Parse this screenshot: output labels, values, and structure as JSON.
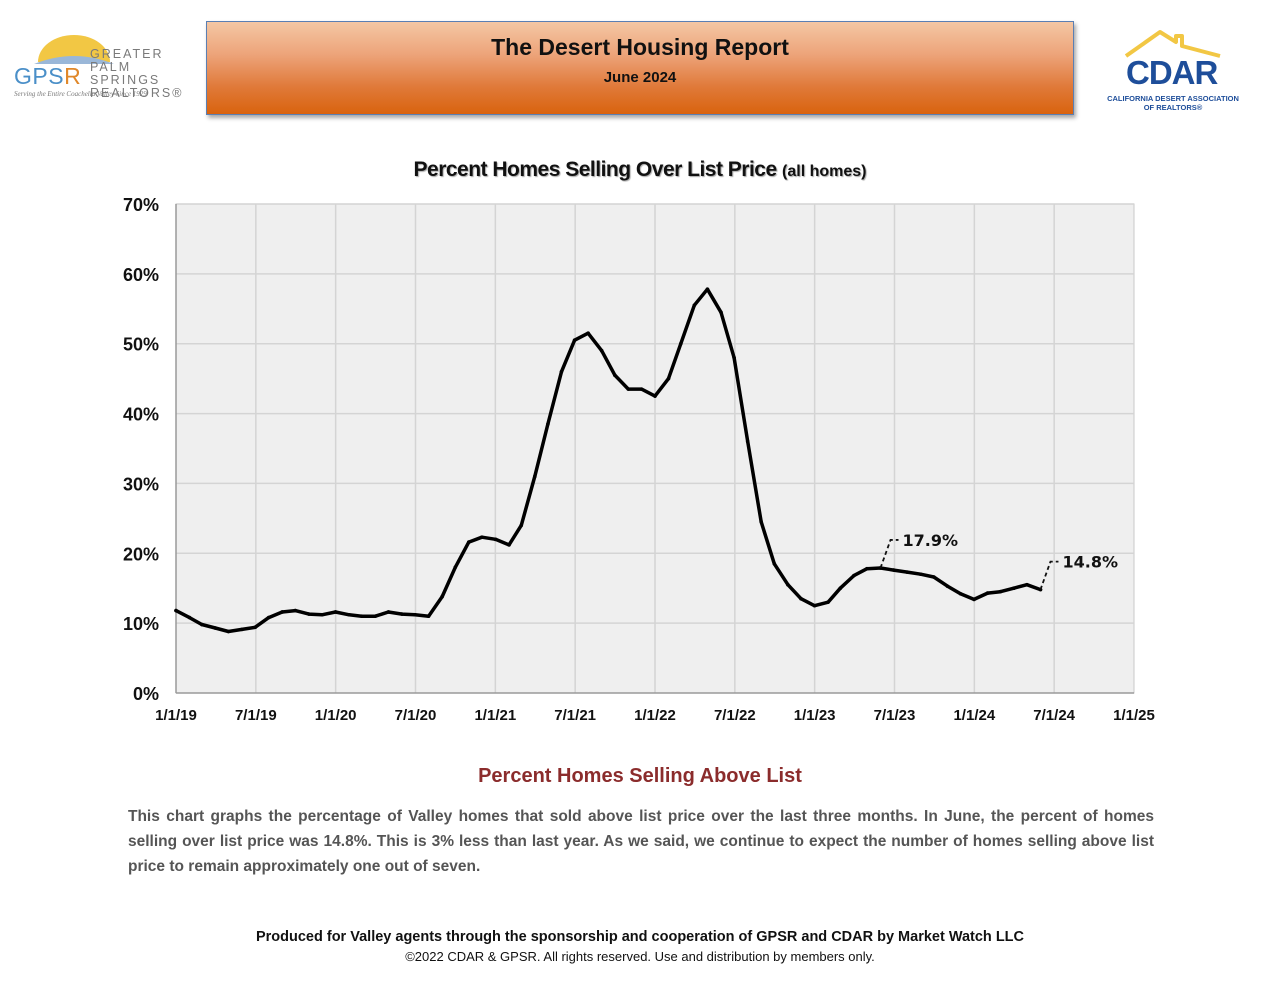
{
  "header": {
    "title": "The Desert Housing Report",
    "subtitle": "June 2024"
  },
  "logos": {
    "left": {
      "abbrev_main": "GPS",
      "abbrev_accent": "R",
      "line1": "GREATER",
      "line2": "PALM SPRINGS",
      "line3": "REALTORS®",
      "tagline": "Serving the Entire Coachella Valley Since 1929"
    },
    "right": {
      "word": "CDAR",
      "line1": "CALIFORNIA DESERT ASSOCIATION",
      "line2": "OF REALTORS®"
    }
  },
  "chart_title": {
    "main": "Percent Homes Selling Over List Price",
    "suffix": "(all homes)"
  },
  "chart_data": {
    "type": "line",
    "title": "Percent Homes Selling Over List Price (all homes)",
    "xlabel": "",
    "ylabel": "",
    "x_ticks": [
      "1/1/19",
      "7/1/19",
      "1/1/20",
      "7/1/20",
      "1/1/21",
      "7/1/21",
      "1/1/22",
      "7/1/22",
      "1/1/23",
      "7/1/23",
      "1/1/24",
      "7/1/24",
      "1/1/25"
    ],
    "y_ticks": [
      "0%",
      "10%",
      "20%",
      "30%",
      "40%",
      "50%",
      "60%",
      "70%"
    ],
    "xlim": [
      "2019-01-01",
      "2025-01-01"
    ],
    "ylim": [
      0,
      70
    ],
    "grid": true,
    "line_color": "#000000",
    "plot_background": "#efefef",
    "series": [
      {
        "x": [
          "2019-01-01",
          "2019-02-01",
          "2019-03-01",
          "2019-04-01",
          "2019-05-01",
          "2019-06-01",
          "2019-07-01",
          "2019-08-01",
          "2019-09-01",
          "2019-10-01",
          "2019-11-01",
          "2019-12-01",
          "2020-01-01",
          "2020-02-01",
          "2020-03-01",
          "2020-04-01",
          "2020-05-01",
          "2020-06-01",
          "2020-07-01",
          "2020-08-01",
          "2020-09-01",
          "2020-10-01",
          "2020-11-01",
          "2020-12-01",
          "2021-01-01",
          "2021-02-01",
          "2021-03-01",
          "2021-04-01",
          "2021-05-01",
          "2021-06-01",
          "2021-07-01",
          "2021-08-01",
          "2021-09-01",
          "2021-10-01",
          "2021-11-01",
          "2021-12-01",
          "2022-01-01",
          "2022-02-01",
          "2022-03-01",
          "2022-04-01",
          "2022-05-01",
          "2022-06-01",
          "2022-07-01",
          "2022-08-01",
          "2022-09-01",
          "2022-10-01",
          "2022-11-01",
          "2022-12-01",
          "2023-01-01",
          "2023-02-01",
          "2023-03-01",
          "2023-04-01",
          "2023-05-01",
          "2023-06-01",
          "2023-07-01",
          "2023-08-01",
          "2023-09-01",
          "2023-10-01",
          "2023-11-01",
          "2023-12-01",
          "2024-01-01",
          "2024-02-01",
          "2024-03-01",
          "2024-04-01",
          "2024-05-01",
          "2024-06-01"
        ],
        "values": [
          11.8,
          10.8,
          9.8,
          9.3,
          8.8,
          9.1,
          9.4,
          10.8,
          11.6,
          11.8,
          11.3,
          11.2,
          11.6,
          11.2,
          11.0,
          11.0,
          11.6,
          11.3,
          11.2,
          11.0,
          13.8,
          18.0,
          21.6,
          22.3,
          22.0,
          21.2,
          24.0,
          31.0,
          38.5,
          46.0,
          50.5,
          51.5,
          49.0,
          45.5,
          43.5,
          43.5,
          42.5,
          45.0,
          50.0,
          55.5,
          57.8,
          54.5,
          48.0,
          36.0,
          24.5,
          18.5,
          15.5,
          13.5,
          12.5,
          13.0,
          15.0,
          16.8,
          17.8,
          17.9,
          17.6,
          17.3,
          17.0,
          16.6,
          15.3,
          14.2,
          13.4,
          14.3,
          14.5,
          15.0,
          15.5,
          14.8
        ]
      }
    ],
    "annotations": [
      {
        "x": "2023-06-01",
        "y": 17.9,
        "label": "17.9%"
      },
      {
        "x": "2024-06-01",
        "y": 14.8,
        "label": "14.8%"
      }
    ]
  },
  "section": {
    "title": "Percent Homes Selling Above List",
    "description": "This chart graphs the percentage of Valley homes that sold above list price over the last three months. In June, the percent of homes selling over list price was 14.8%. This is 3% less than last year. As we said, we continue to expect the number of homes selling above list price to remain approximately one out of seven."
  },
  "footer": {
    "line1": "Produced for Valley agents through the sponsorship and cooperation of GPSR and CDAR by Market Watch LLC",
    "line2": "©2022 CDAR & GPSR.  All rights reserved.  Use and distribution by members only."
  }
}
